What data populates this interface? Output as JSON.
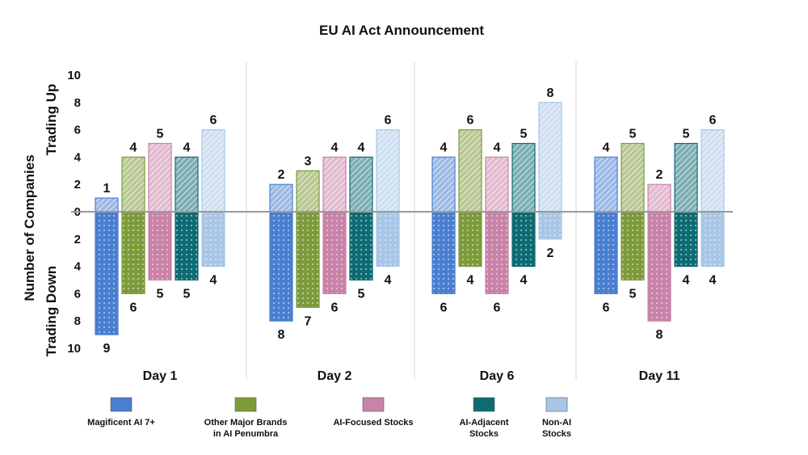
{
  "chart_data": {
    "type": "bar",
    "title": "EU AI Act Announcement",
    "ylabel": "Number of Companies",
    "ylabel_up": "Trading Up",
    "ylabel_down": "Trading Down",
    "ylim": [
      -10,
      10
    ],
    "yticks": [
      "10",
      "8",
      "6",
      "4",
      "2",
      "0",
      "2",
      "4",
      "6",
      "8",
      "10"
    ],
    "categories": [
      "Day 1",
      "Day 2",
      "Day 6",
      "Day 11"
    ],
    "series": [
      {
        "name": "Magificent AI 7+",
        "color": "#4a7fd0",
        "up": [
          1,
          2,
          4,
          4
        ],
        "down": [
          9,
          8,
          6,
          6
        ]
      },
      {
        "name": "Other Major Brands in AI Penumbra",
        "color": "#7d9b3a",
        "up": [
          4,
          3,
          6,
          5
        ],
        "down": [
          6,
          7,
          4,
          5
        ]
      },
      {
        "name": "AI-Focused Stocks",
        "color": "#c983a8",
        "up": [
          5,
          4,
          4,
          2
        ],
        "down": [
          5,
          6,
          6,
          8
        ]
      },
      {
        "name": "AI-Adjacent Stocks",
        "color": "#0e6b74",
        "up": [
          4,
          4,
          5,
          5
        ],
        "down": [
          5,
          5,
          4,
          4
        ]
      },
      {
        "name": "Non-AI Stocks",
        "color": "#a8c6e6",
        "up": [
          6,
          6,
          8,
          6
        ],
        "down": [
          4,
          4,
          2,
          4
        ]
      }
    ],
    "legend": {
      "position": "bottom",
      "entries": [
        {
          "lines": [
            "Magificent AI 7+"
          ]
        },
        {
          "lines": [
            "Other Major Brands",
            "in AI Penumbra"
          ]
        },
        {
          "lines": [
            "AI-Focused Stocks"
          ]
        },
        {
          "lines": [
            "AI-Adjacent",
            "Stocks"
          ]
        },
        {
          "lines": [
            "Non-AI",
            "Stocks"
          ]
        }
      ]
    },
    "grid": false
  }
}
